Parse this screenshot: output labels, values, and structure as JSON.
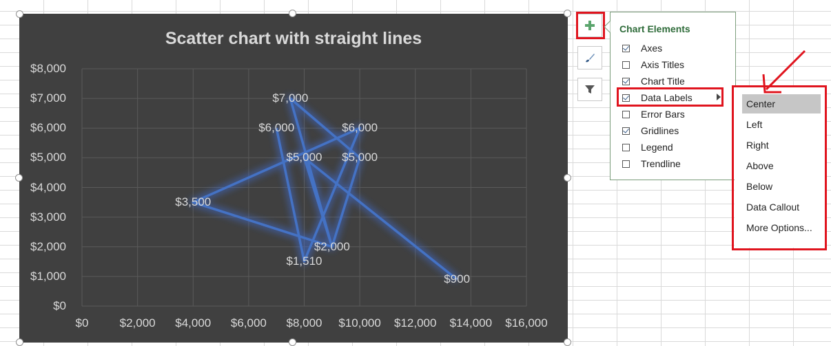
{
  "chart_data": {
    "type": "scatter",
    "title": "Scatter chart with straight lines",
    "xlim": [
      0,
      16000
    ],
    "ylim": [
      0,
      8000
    ],
    "x_ticks": [
      "$0",
      "$2,000",
      "$4,000",
      "$6,000",
      "$8,000",
      "$10,000",
      "$12,000",
      "$14,000",
      "$16,000"
    ],
    "y_ticks": [
      "$0",
      "$1,000",
      "$2,000",
      "$3,000",
      "$4,000",
      "$5,000",
      "$6,000",
      "$7,000",
      "$8,000"
    ],
    "grid": true,
    "points": [
      {
        "x": 7000,
        "y": 6000,
        "label": "$6,000"
      },
      {
        "x": 8000,
        "y": 1510,
        "label": "$1,510"
      },
      {
        "x": 10000,
        "y": 6000,
        "label": "$6,000"
      },
      {
        "x": 4000,
        "y": 3500,
        "label": "$3,500"
      },
      {
        "x": 9000,
        "y": 2000,
        "label": "$2,000"
      },
      {
        "x": 10000,
        "y": 5000,
        "label": "$5,000"
      },
      {
        "x": 7500,
        "y": 7000,
        "label": "$7,000"
      },
      {
        "x": 9000,
        "y": 2000,
        "label": ""
      },
      {
        "x": 8000,
        "y": 5000,
        "label": "$5,000"
      },
      {
        "x": 13500,
        "y": 900,
        "label": "$900"
      }
    ],
    "line_color": "#4472c4"
  },
  "chart_elements": {
    "title": "Chart Elements",
    "items": [
      {
        "label": "Axes",
        "checked": true
      },
      {
        "label": "Axis Titles",
        "checked": false
      },
      {
        "label": "Chart Title",
        "checked": true
      },
      {
        "label": "Data Labels",
        "checked": true
      },
      {
        "label": "Error Bars",
        "checked": false
      },
      {
        "label": "Gridlines",
        "checked": true
      },
      {
        "label": "Legend",
        "checked": false
      },
      {
        "label": "Trendline",
        "checked": false
      }
    ]
  },
  "data_labels_menu": {
    "items": [
      "Center",
      "Left",
      "Right",
      "Above",
      "Below",
      "Data Callout",
      "More Options..."
    ],
    "selected": "Center"
  },
  "side_buttons": [
    "chart-elements-plus-icon",
    "chart-styles-brush-icon",
    "chart-filters-funnel-icon"
  ],
  "colors": {
    "chart_bg": "#404040",
    "accent_red": "#e0141e",
    "panel_title": "#2e6b39"
  }
}
